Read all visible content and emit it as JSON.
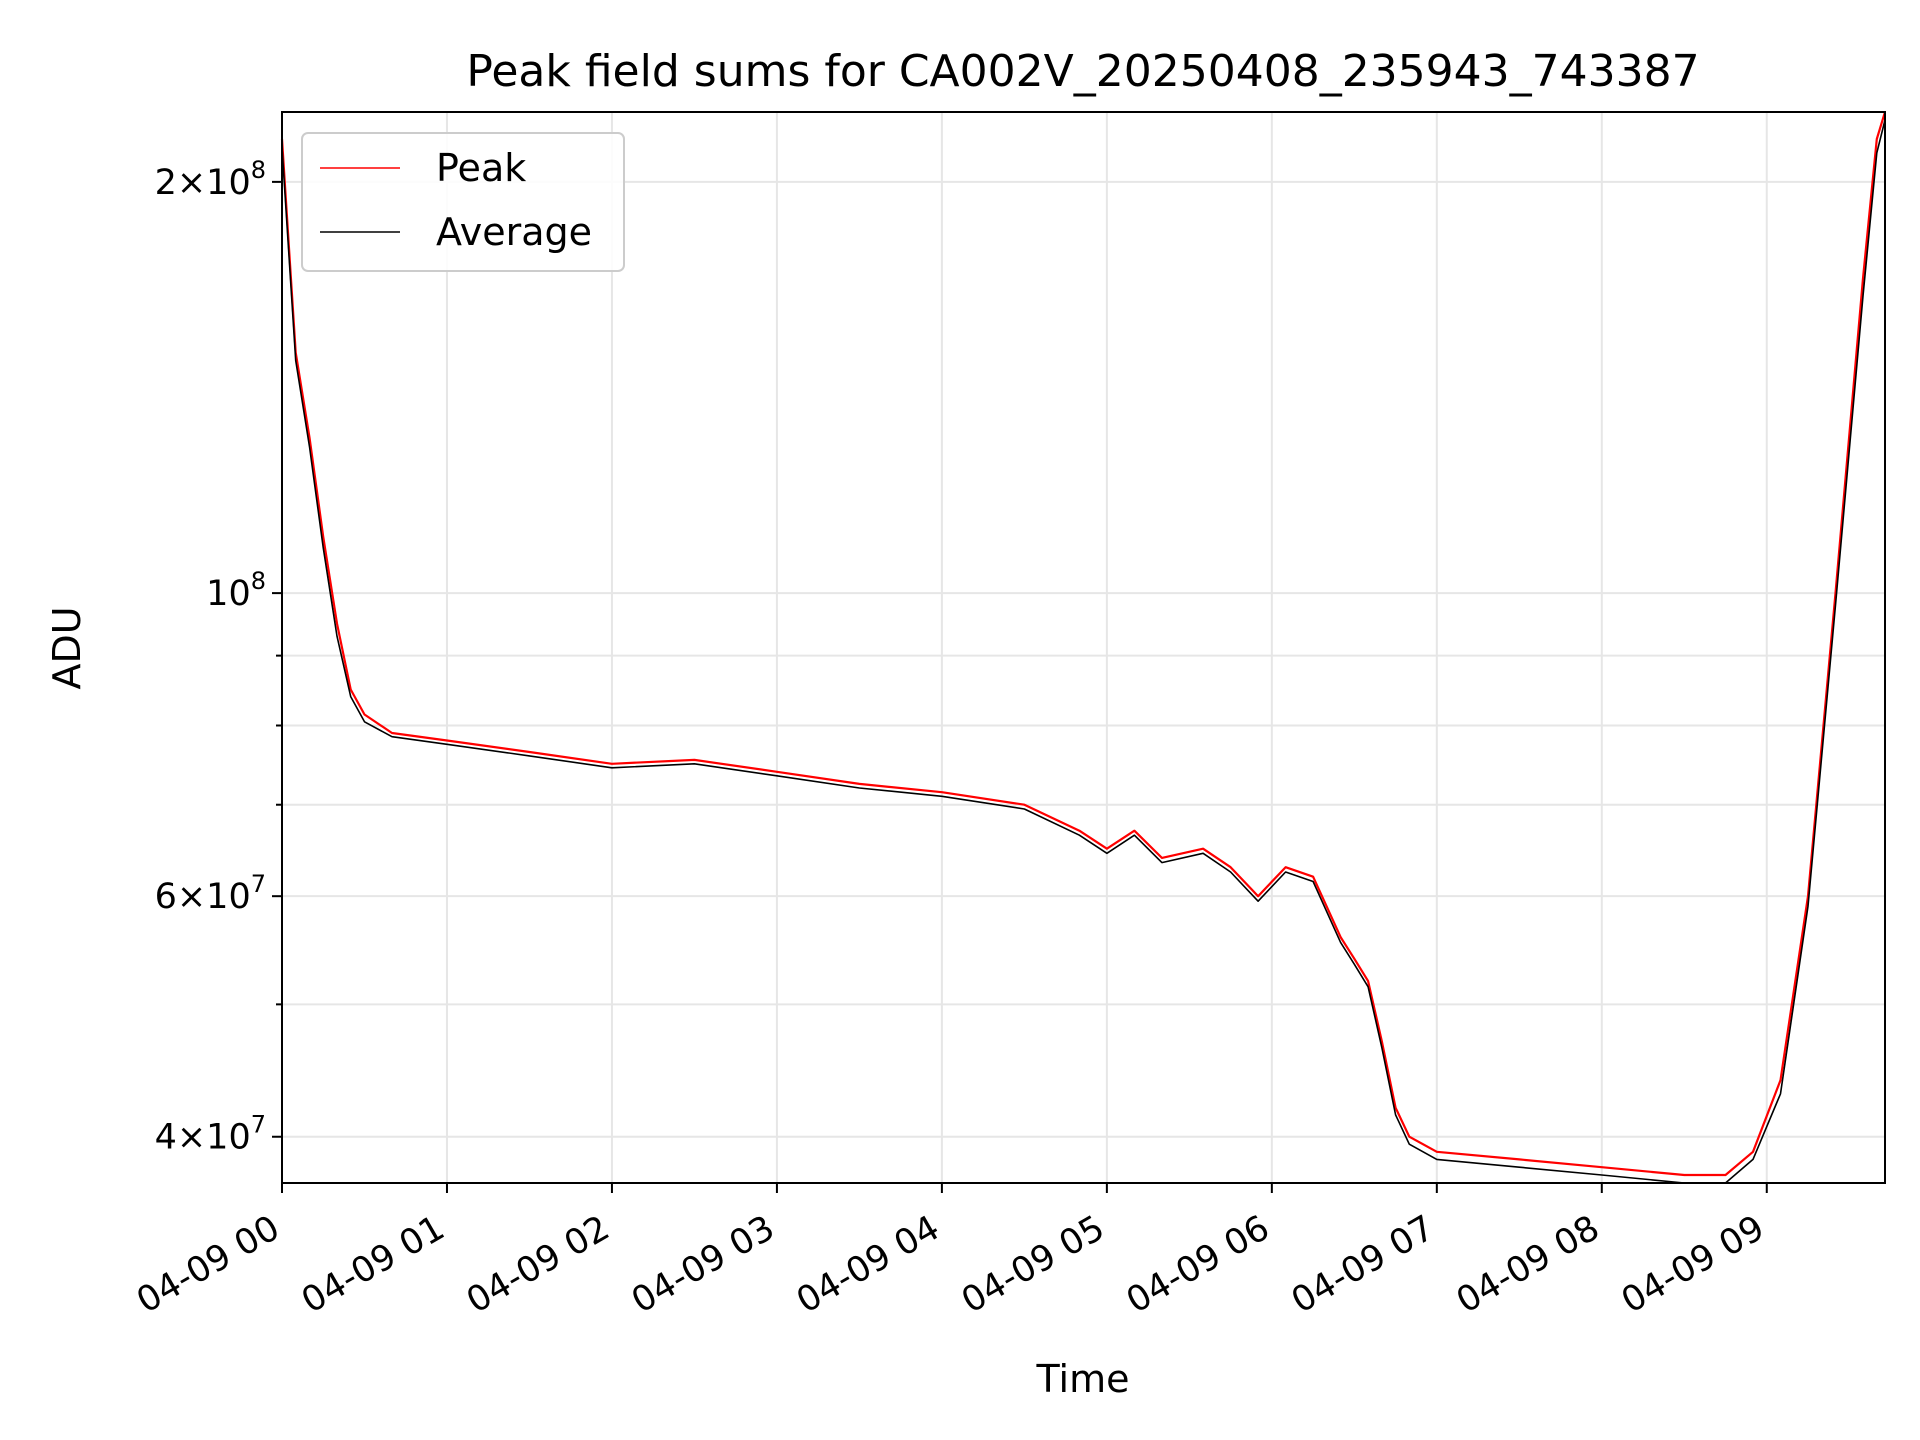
{
  "chart_data": {
    "type": "line",
    "title": "Peak field sums for CA002V_20250408_235943_743387",
    "xlabel": "Time",
    "ylabel": "ADU",
    "y_scale": "log",
    "ylim": [
      37000000,
      225000000
    ],
    "xlim": [
      "04-09 00:00",
      "04-09 09:43"
    ],
    "grid": true,
    "legend_position": "upper-left",
    "x_ticks": [
      {
        "label": "04-09 00",
        "value": "04-09 00:00"
      },
      {
        "label": "04-09 01",
        "value": "04-09 01:00"
      },
      {
        "label": "04-09 02",
        "value": "04-09 02:00"
      },
      {
        "label": "04-09 03",
        "value": "04-09 03:00"
      },
      {
        "label": "04-09 04",
        "value": "04-09 04:00"
      },
      {
        "label": "04-09 05",
        "value": "04-09 05:00"
      },
      {
        "label": "04-09 06",
        "value": "04-09 06:00"
      },
      {
        "label": "04-09 07",
        "value": "04-09 07:00"
      },
      {
        "label": "04-09 08",
        "value": "04-09 08:00"
      },
      {
        "label": "04-09 09",
        "value": "04-09 09:00"
      }
    ],
    "y_major_ticks": [
      {
        "value": 40000000,
        "mantissa": "4",
        "exp": "7"
      },
      {
        "value": 60000000,
        "mantissa": "6",
        "exp": "7"
      },
      {
        "value": 100000000,
        "mantissa": "",
        "exp": "8"
      },
      {
        "value": 200000000,
        "mantissa": "2",
        "exp": "8"
      }
    ],
    "y_minor_ticks": [
      50000000,
      70000000,
      80000000,
      90000000
    ],
    "series": [
      {
        "name": "Peak",
        "color": "#ff0000",
        "x": [
          "04-09 00:00",
          "04-09 00:05",
          "04-09 00:10",
          "04-09 00:15",
          "04-09 00:20",
          "04-09 00:25",
          "04-09 00:30",
          "04-09 00:40",
          "04-09 01:00",
          "04-09 01:30",
          "04-09 02:00",
          "04-09 02:30",
          "04-09 03:00",
          "04-09 03:30",
          "04-09 04:00",
          "04-09 04:30",
          "04-09 04:50",
          "04-09 05:00",
          "04-09 05:10",
          "04-09 05:20",
          "04-09 05:35",
          "04-09 05:45",
          "04-09 05:55",
          "04-09 06:05",
          "04-09 06:15",
          "04-09 06:25",
          "04-09 06:30",
          "04-09 06:35",
          "04-09 06:40",
          "04-09 06:45",
          "04-09 06:50",
          "04-09 07:00",
          "04-09 07:30",
          "04-09 08:00",
          "04-09 08:30",
          "04-09 08:45",
          "04-09 08:55",
          "04-09 09:05",
          "04-09 09:15",
          "04-09 09:25",
          "04-09 09:35",
          "04-09 09:40",
          "04-09 09:43"
        ],
        "values": [
          215000000,
          150000000,
          130000000,
          110000000,
          95000000,
          85000000,
          81500000,
          79000000,
          78000000,
          76500000,
          75000000,
          75500000,
          74000000,
          72500000,
          71500000,
          70000000,
          67000000,
          65000000,
          67000000,
          64000000,
          65000000,
          63000000,
          60000000,
          63000000,
          62000000,
          56000000,
          54000000,
          52000000,
          47000000,
          42000000,
          40000000,
          39000000,
          38500000,
          38000000,
          37500000,
          37500000,
          39000000,
          44000000,
          60000000,
          100000000,
          170000000,
          215000000,
          225000000
        ]
      },
      {
        "name": "Average",
        "color": "#000000",
        "x": [
          "04-09 00:00",
          "04-09 00:05",
          "04-09 00:10",
          "04-09 00:15",
          "04-09 00:20",
          "04-09 00:25",
          "04-09 00:30",
          "04-09 00:40",
          "04-09 01:00",
          "04-09 01:30",
          "04-09 02:00",
          "04-09 02:30",
          "04-09 03:00",
          "04-09 03:30",
          "04-09 04:00",
          "04-09 04:30",
          "04-09 04:50",
          "04-09 05:00",
          "04-09 05:10",
          "04-09 05:20",
          "04-09 05:35",
          "04-09 05:45",
          "04-09 05:55",
          "04-09 06:05",
          "04-09 06:15",
          "04-09 06:25",
          "04-09 06:30",
          "04-09 06:35",
          "04-09 06:40",
          "04-09 06:45",
          "04-09 06:50",
          "04-09 07:00",
          "04-09 07:30",
          "04-09 08:00",
          "04-09 08:30",
          "04-09 08:45",
          "04-09 08:55",
          "04-09 09:05",
          "04-09 09:15",
          "04-09 09:25",
          "04-09 09:35",
          "04-09 09:40",
          "04-09 09:43"
        ],
        "values": [
          212000000,
          148000000,
          128000000,
          108000000,
          93000000,
          84000000,
          80500000,
          78500000,
          77500000,
          76000000,
          74500000,
          75000000,
          73500000,
          72000000,
          71000000,
          69500000,
          66500000,
          64500000,
          66500000,
          63500000,
          64500000,
          62500000,
          59500000,
          62500000,
          61500000,
          55500000,
          53500000,
          51500000,
          46500000,
          41500000,
          39500000,
          38500000,
          38000000,
          37500000,
          37000000,
          37000000,
          38500000,
          43000000,
          59000000,
          98000000,
          165000000,
          210000000,
          222000000
        ]
      }
    ]
  }
}
